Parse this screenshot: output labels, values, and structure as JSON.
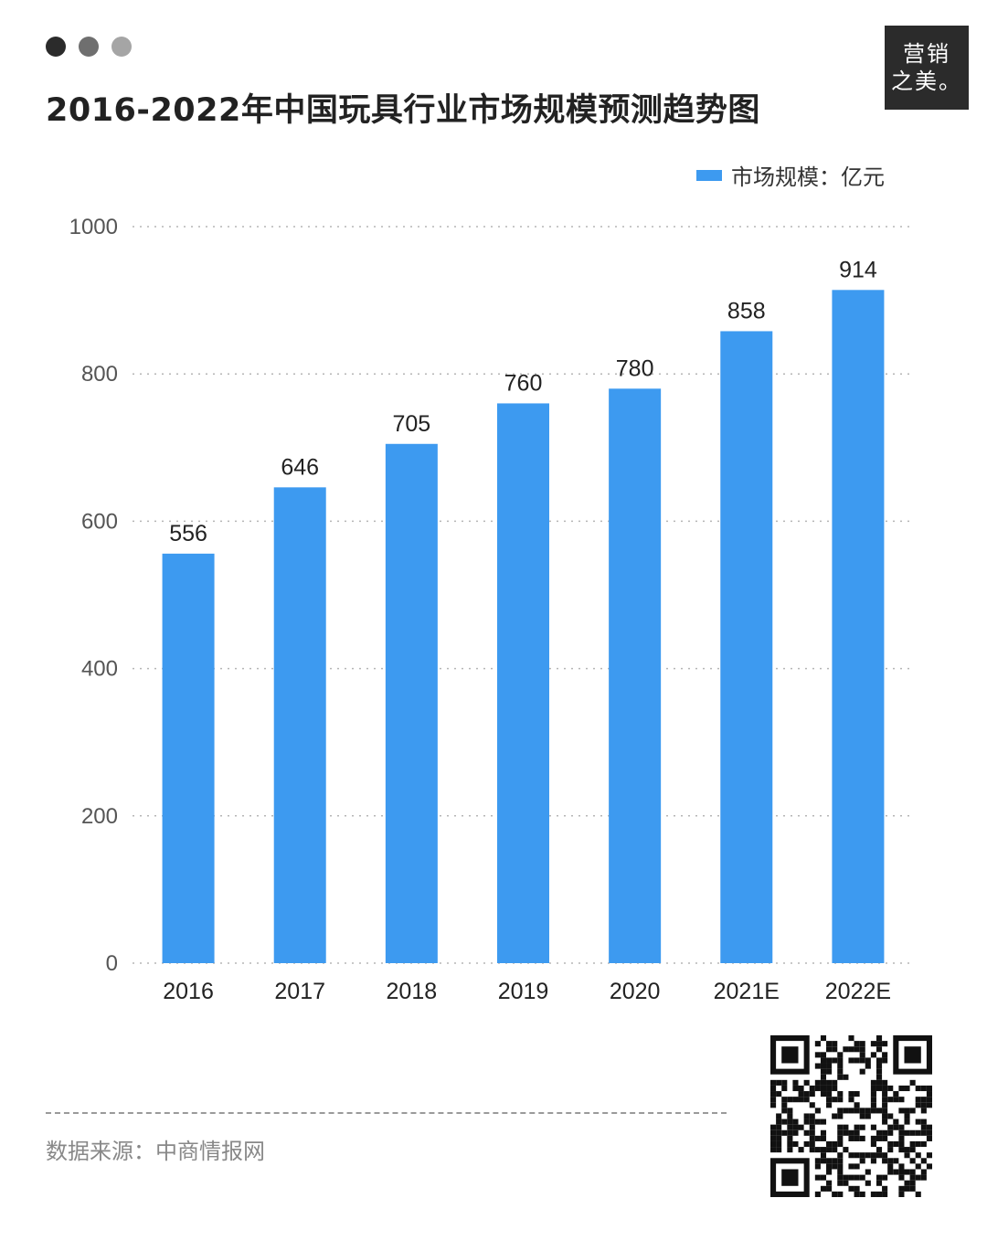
{
  "header": {
    "dots": [
      {
        "color": "#2b2b2b"
      },
      {
        "color": "#6f6f6f"
      },
      {
        "color": "#a5a5a5"
      }
    ],
    "title": "2016-2022年中国玩具行业市场规模预测趋势图"
  },
  "brand": {
    "line1": "营销",
    "line2": "之美。"
  },
  "legend": {
    "label": "市场规模：亿元",
    "color": "#3d9af0"
  },
  "chart_data": {
    "type": "bar",
    "categories": [
      "2016",
      "2017",
      "2018",
      "2019",
      "2020",
      "2021E",
      "2022E"
    ],
    "series": [
      {
        "name": "市场规模：亿元",
        "values": [
          556,
          646,
          705,
          760,
          780,
          858,
          914
        ],
        "color": "#3d9af0"
      }
    ],
    "ylim": [
      0,
      1000
    ],
    "yticks": [
      0,
      200,
      400,
      600,
      800,
      1000
    ],
    "grid": true,
    "grid_style": "dotted",
    "legend_position": "top-right",
    "data_labels": true
  },
  "footer": {
    "source": "数据来源：中商情报网"
  }
}
